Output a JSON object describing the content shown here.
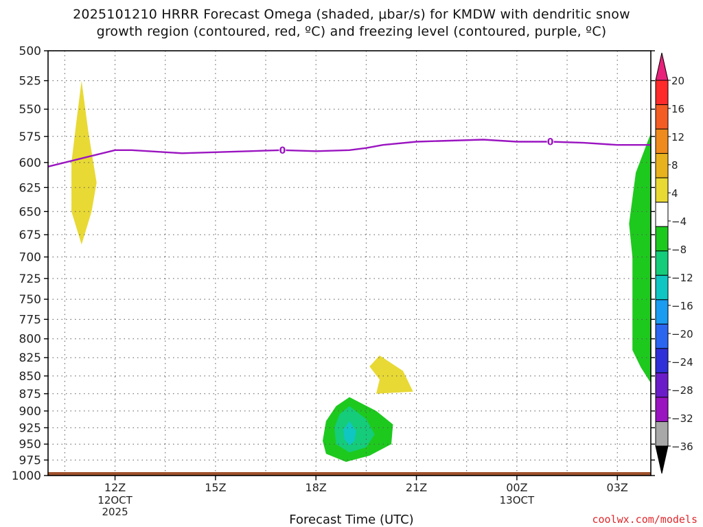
{
  "chart_data": {
    "type": "heatmap",
    "title": {
      "line1": "2025101210 HRRR Forecast Omega (shaded, μbar/s) for KMDW with dendritic snow",
      "line2": "growth region (contoured, red, ºC) and freezing level (contoured, purple, ºC)"
    },
    "xlabel": "Forecast Time (UTC)",
    "x_ticks": [
      {
        "h": 12,
        "label": "12Z",
        "sub": [
          "12OCT",
          "2025"
        ]
      },
      {
        "h": 15,
        "label": "15Z",
        "sub": []
      },
      {
        "h": 18,
        "label": "18Z",
        "sub": []
      },
      {
        "h": 21,
        "label": "21Z",
        "sub": []
      },
      {
        "h": 24,
        "label": "00Z",
        "sub": [
          "13OCT"
        ]
      },
      {
        "h": 27,
        "label": "03Z",
        "sub": []
      }
    ],
    "xlim": [
      10,
      28
    ],
    "y_ticks": [
      500,
      525,
      550,
      575,
      600,
      625,
      650,
      675,
      700,
      725,
      750,
      775,
      800,
      825,
      850,
      875,
      900,
      925,
      950,
      975,
      1000
    ],
    "ylim": [
      500,
      1000
    ],
    "y_scale": "log-pressure",
    "grid": true,
    "colorbar": {
      "labels": [
        "20",
        "16",
        "12",
        "8",
        "4",
        "−4",
        "−8",
        "−12",
        "−16",
        "−20",
        "−24",
        "−28",
        "−32",
        "−36"
      ],
      "top_color": "#e8217a",
      "bottom_color": "#000000",
      "colors": [
        "#ff2a2a",
        "#f35c22",
        "#ef8a1c",
        "#e8b21e",
        "#e8d935",
        "#ffffff",
        "#1ec91e",
        "#14cc7a",
        "#10c6c2",
        "#1a9cf0",
        "#2a66f0",
        "#3030d8",
        "#6a1cc8",
        "#9a14c0",
        "#a8a8a8"
      ]
    },
    "freezing_level": {
      "color": "#9a14c0",
      "label": "0",
      "points": [
        [
          10,
          604
        ],
        [
          10.5,
          600
        ],
        [
          11,
          596
        ],
        [
          11.5,
          592
        ],
        [
          12,
          588
        ],
        [
          12.5,
          588
        ],
        [
          13,
          589
        ],
        [
          13.5,
          590
        ],
        [
          14,
          591
        ],
        [
          15,
          590
        ],
        [
          16,
          589
        ],
        [
          17,
          588
        ],
        [
          18,
          589
        ],
        [
          19,
          588
        ],
        [
          19.5,
          586
        ],
        [
          20,
          583
        ],
        [
          21,
          580
        ],
        [
          22,
          579
        ],
        [
          23,
          578
        ],
        [
          24,
          580
        ],
        [
          25,
          580
        ],
        [
          26,
          581
        ],
        [
          27,
          583
        ],
        [
          28,
          583
        ]
      ],
      "label_points": [
        [
          17,
          588
        ],
        [
          25,
          580
        ]
      ]
    },
    "omega_regions": [
      {
        "value_band": "4 to 8",
        "color": "#e8d935",
        "points": [
          [
            11,
            525
          ],
          [
            11.2,
            570
          ],
          [
            11.45,
            620
          ],
          [
            11.3,
            650
          ],
          [
            11,
            686
          ],
          [
            10.7,
            650
          ],
          [
            10.7,
            600
          ],
          [
            10.85,
            560
          ]
        ]
      },
      {
        "value_band": "4 to 8",
        "color": "#e8d935",
        "points": [
          [
            19.9,
            822
          ],
          [
            20.6,
            843
          ],
          [
            20.9,
            872
          ],
          [
            19.8,
            875
          ],
          [
            19.9,
            855
          ],
          [
            19.6,
            837
          ]
        ]
      },
      {
        "value_band": "-4 to -8",
        "color": "#1ec91e",
        "points": [
          [
            19.0,
            880
          ],
          [
            19.8,
            900
          ],
          [
            20.3,
            920
          ],
          [
            20.25,
            950
          ],
          [
            19.6,
            968
          ],
          [
            18.9,
            978
          ],
          [
            18.3,
            965
          ],
          [
            18.2,
            945
          ],
          [
            18.3,
            915
          ],
          [
            18.6,
            893
          ]
        ]
      },
      {
        "value_band": "-8 to -12",
        "color": "#14cc7a",
        "points": [
          [
            19.0,
            893
          ],
          [
            19.5,
            912
          ],
          [
            19.75,
            935
          ],
          [
            19.5,
            955
          ],
          [
            19.0,
            963
          ],
          [
            18.6,
            950
          ],
          [
            18.55,
            925
          ],
          [
            18.7,
            905
          ]
        ]
      },
      {
        "value_band": "-12 to -16",
        "color": "#10c6c2",
        "points": [
          [
            19.0,
            915
          ],
          [
            19.2,
            930
          ],
          [
            19.15,
            945
          ],
          [
            19.0,
            952
          ],
          [
            18.85,
            942
          ],
          [
            18.82,
            928
          ]
        ]
      },
      {
        "value_band": "-4 to -8",
        "color": "#1ec91e",
        "points": [
          [
            28,
            572
          ],
          [
            27.55,
            610
          ],
          [
            27.35,
            663
          ],
          [
            27.45,
            700
          ],
          [
            27.45,
            815
          ],
          [
            27.7,
            838
          ],
          [
            28,
            860
          ]
        ]
      }
    ],
    "surface": {
      "color": "#a0522d",
      "pressure": 1000
    }
  },
  "credit": "coolwx.com/models"
}
